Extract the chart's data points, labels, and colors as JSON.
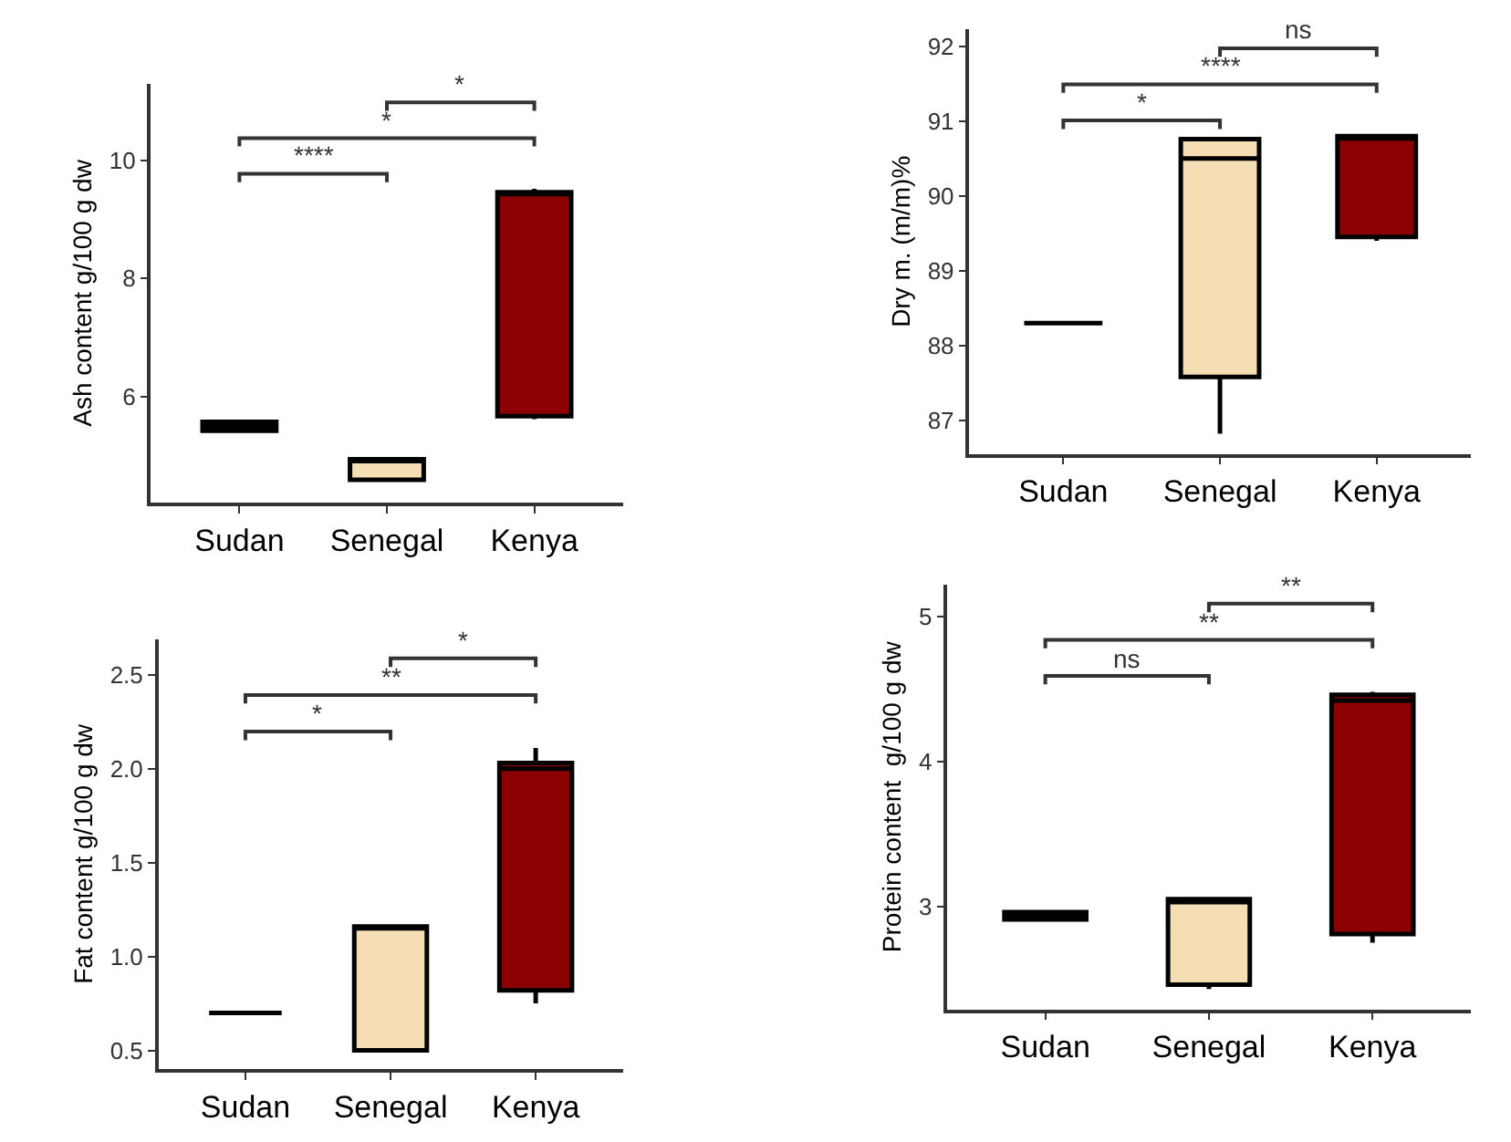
{
  "chart_data": [
    {
      "type": "box",
      "ylabel": "Ash content g/100 g dw",
      "categories": [
        "Sudan",
        "Senegal",
        "Kenya"
      ],
      "colors": [
        "#555555",
        "#f5deb3",
        "#8b0000"
      ],
      "boxes": [
        {
          "low": 5.42,
          "q1": 5.42,
          "median": 5.5,
          "q3": 5.57,
          "high": 5.57
        },
        {
          "low": 4.56,
          "q1": 4.59,
          "median": 4.92,
          "q3": 4.94,
          "high": 4.94
        },
        {
          "low": 5.62,
          "q1": 5.67,
          "median": 9.43,
          "q3": 9.46,
          "high": 9.52
        }
      ],
      "ylim": [
        4.2,
        11.3
      ],
      "yticks": [
        6,
        8,
        10
      ],
      "annotations": [
        "****",
        "*",
        "*"
      ]
    },
    {
      "type": "box",
      "ylabel": "Dry m. (m/m)%",
      "categories": [
        "Sudan",
        "Senegal",
        "Kenya"
      ],
      "colors": [
        "#000000",
        "#f5deb3",
        "#8b0000"
      ],
      "boxes": [
        {
          "low": 88.3,
          "q1": 88.3,
          "median": 88.3,
          "q3": 88.3,
          "high": 88.3
        },
        {
          "low": 86.82,
          "q1": 87.58,
          "median": 90.5,
          "q3": 90.76,
          "high": 90.76
        },
        {
          "low": 89.4,
          "q1": 89.45,
          "median": 90.77,
          "q3": 90.8,
          "high": 90.8
        }
      ],
      "ylim": [
        86.55,
        92.23
      ],
      "yticks": [
        87,
        88,
        89,
        90,
        91,
        92
      ],
      "annotations": [
        "*",
        "****",
        "ns"
      ]
    },
    {
      "type": "box",
      "ylabel": "Fat content g/100 g dw",
      "categories": [
        "Sudan",
        "Senegal",
        "Kenya"
      ],
      "colors": [
        "#000000",
        "#f5deb3",
        "#8b0000"
      ],
      "boxes": [
        {
          "low": 0.7,
          "q1": 0.7,
          "median": 0.7,
          "q3": 0.7,
          "high": 0.7
        },
        {
          "low": 0.5,
          "q1": 0.5,
          "median": 1.16,
          "q3": 1.16,
          "high": 1.16
        },
        {
          "low": 0.75,
          "q1": 0.82,
          "median": 2.0,
          "q3": 2.03,
          "high": 2.11
        }
      ],
      "ylim": [
        0.4,
        2.69
      ],
      "yticks": [
        {
          "value": 0.5,
          "label": "0.5"
        },
        {
          "value": 1.0,
          "label": "1.0"
        },
        {
          "value": 1.5,
          "label": "1.5"
        },
        {
          "value": 2.0,
          "label": "2.0"
        },
        {
          "value": 2.5,
          "label": "2.5"
        }
      ],
      "annotations": [
        "*",
        "**",
        "*"
      ]
    },
    {
      "type": "box",
      "ylabel": "Protein content  g/100 g dw",
      "categories": [
        "Sudan",
        "Senegal",
        "Kenya"
      ],
      "colors": [
        "#555555",
        "#f5deb3",
        "#8b0000"
      ],
      "boxes": [
        {
          "low": 2.91,
          "q1": 2.91,
          "median": 2.94,
          "q3": 2.96,
          "high": 2.96
        },
        {
          "low": 2.43,
          "q1": 2.46,
          "median": 3.03,
          "q3": 3.05,
          "high": 3.05
        },
        {
          "low": 2.75,
          "q1": 2.81,
          "median": 4.42,
          "q3": 4.46,
          "high": 4.48
        }
      ],
      "ylim": [
        2.29,
        5.22
      ],
      "yticks": [
        3,
        4,
        5
      ],
      "annotations": [
        "ns",
        "**",
        "**"
      ]
    }
  ]
}
